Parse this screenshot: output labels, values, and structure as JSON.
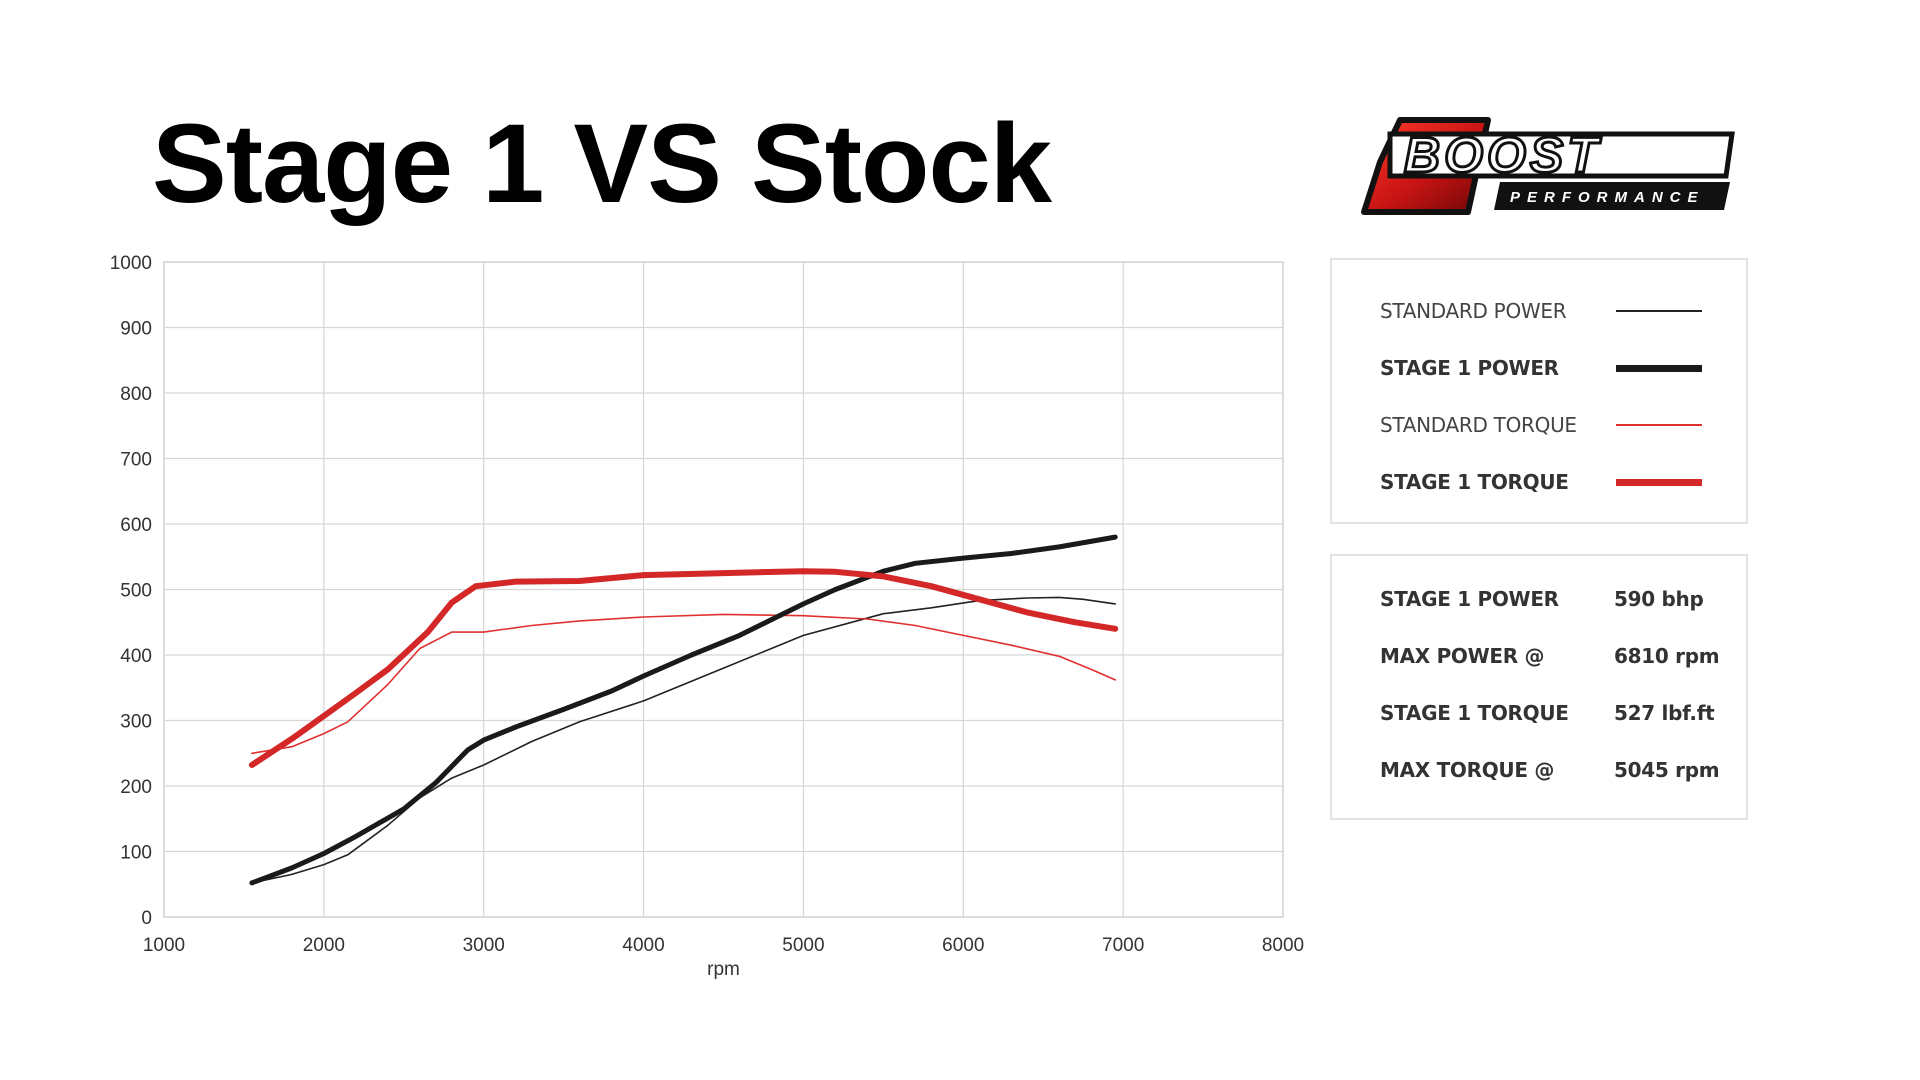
{
  "title": "Stage 1 VS Stock",
  "logo": {
    "main_text": "BOOST",
    "sub_text": "PERFORMANCE",
    "accent_color": "#d42020"
  },
  "chart_data": {
    "type": "line",
    "xlabel": "rpm",
    "ylabel": "",
    "xlim": [
      1000,
      8000
    ],
    "ylim": [
      0,
      1000
    ],
    "xticks": [
      1000,
      2000,
      3000,
      4000,
      5000,
      6000,
      7000,
      8000
    ],
    "yticks": [
      0,
      100,
      200,
      300,
      400,
      500,
      600,
      700,
      800,
      900,
      1000
    ],
    "grid": true,
    "series": [
      {
        "name": "STANDARD POWER",
        "color": "#222222",
        "width": 1.6,
        "x": [
          1550,
          1800,
          2000,
          2150,
          2400,
          2600,
          2800,
          3000,
          3300,
          3600,
          4000,
          4500,
          5000,
          5500,
          5800,
          6100,
          6400,
          6600,
          6750,
          6950
        ],
        "y": [
          52,
          65,
          80,
          95,
          140,
          182,
          212,
          232,
          268,
          298,
          330,
          380,
          430,
          463,
          472,
          483,
          487,
          488,
          485,
          478
        ]
      },
      {
        "name": "STAGE 1 POWER",
        "color": "#1a1a1a",
        "width": 5,
        "x": [
          1550,
          1800,
          2000,
          2200,
          2500,
          2700,
          2900,
          3000,
          3200,
          3500,
          3800,
          4000,
          4300,
          4600,
          5000,
          5200,
          5500,
          5700,
          6000,
          6300,
          6600,
          6950
        ],
        "y": [
          52,
          75,
          97,
          123,
          165,
          205,
          255,
          270,
          290,
          317,
          345,
          368,
          400,
          430,
          478,
          500,
          528,
          540,
          548,
          555,
          565,
          580
        ]
      },
      {
        "name": "STANDARD TORQUE",
        "color": "#e03030",
        "width": 1.6,
        "x": [
          1550,
          1800,
          2000,
          2150,
          2400,
          2600,
          2800,
          3000,
          3300,
          3600,
          4000,
          4500,
          5000,
          5400,
          5700,
          6000,
          6300,
          6600,
          6800,
          6950
        ],
        "y": [
          250,
          260,
          280,
          298,
          355,
          410,
          435,
          435,
          445,
          452,
          458,
          462,
          460,
          455,
          445,
          430,
          415,
          398,
          378,
          362
        ]
      },
      {
        "name": "STAGE 1 TORQUE",
        "color": "#d42828",
        "width": 6,
        "x": [
          1550,
          1800,
          2000,
          2200,
          2400,
          2650,
          2800,
          2950,
          3200,
          3600,
          4000,
          4500,
          5000,
          5200,
          5500,
          5800,
          6100,
          6400,
          6700,
          6950
        ],
        "y": [
          232,
          272,
          307,
          342,
          378,
          435,
          480,
          505,
          512,
          513,
          522,
          525,
          528,
          527,
          520,
          505,
          485,
          465,
          450,
          440
        ]
      }
    ]
  },
  "legend": {
    "items": [
      {
        "label": "STANDARD POWER",
        "color": "#222222",
        "thickness": 2,
        "bold": false
      },
      {
        "label": "STAGE 1 POWER",
        "color": "#1a1a1a",
        "thickness": 7,
        "bold": true
      },
      {
        "label": "STANDARD TORQUE",
        "color": "#e03030",
        "thickness": 2,
        "bold": false
      },
      {
        "label": "STAGE 1 TORQUE",
        "color": "#d42828",
        "thickness": 7,
        "bold": true
      }
    ]
  },
  "stats": {
    "rows": [
      {
        "label": "STAGE 1 POWER",
        "value": "590 bhp"
      },
      {
        "label": "MAX POWER @",
        "value": "6810 rpm"
      },
      {
        "label": "STAGE 1 TORQUE",
        "value": "527 lbf.ft"
      },
      {
        "label": "MAX TORQUE @",
        "value": "5045 rpm"
      }
    ]
  }
}
